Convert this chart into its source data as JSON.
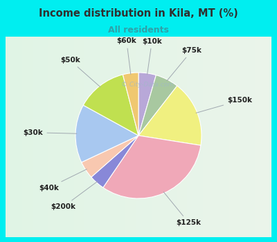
{
  "title": "Income distribution in Kila, MT (%)",
  "subtitle": "All residents",
  "watermark": "© City-Data.com",
  "labels": [
    "$10k",
    "$75k",
    "$150k",
    "$125k",
    "$200k",
    "$40k",
    "$30k",
    "$50k",
    "$60k"
  ],
  "sizes": [
    4.5,
    6,
    17,
    32,
    4,
    4.5,
    15,
    13,
    4
  ],
  "colors": [
    "#b8a8d8",
    "#a8c8a0",
    "#f0f080",
    "#f0a8b8",
    "#8888d8",
    "#f8c8b0",
    "#a8c8f0",
    "#c0e050",
    "#f0c870"
  ],
  "bg_color": "#00eef0",
  "chart_bg_left": "#e8f8f0",
  "chart_bg_right": "#d8eee0",
  "title_color": "#303030",
  "subtitle_color": "#30a0a8",
  "watermark_color": "#a0b8c8",
  "start_angle": 90,
  "label_fontsize": 7.5
}
